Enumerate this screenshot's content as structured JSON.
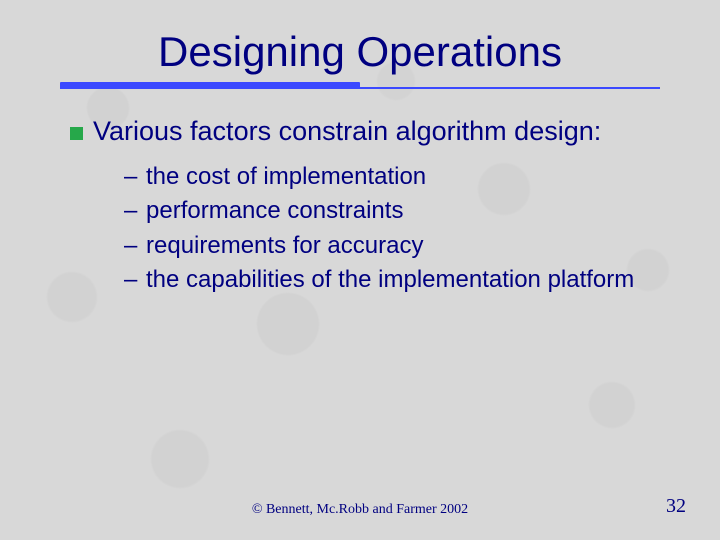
{
  "slide": {
    "title": "Designing Operations",
    "main_bullet": "Various factors constrain algorithm design:",
    "sub_items": [
      "the cost of implementation",
      "performance constraints",
      "requirements for accuracy",
      "the capabilities of the implementation platform"
    ],
    "footer_copyright": "©  Bennett, Mc.Robb and Farmer 2002",
    "page_number": "32"
  },
  "style": {
    "title_color": "#000080",
    "text_color": "#000080",
    "bullet_color": "#26a84a",
    "rule_color": "#3b49ff",
    "background_color": "#d8d8d8",
    "title_fontsize": 42,
    "body_fontsize": 27,
    "sub_fontsize": 24,
    "footer_fontsize": 14,
    "pagenum_fontsize": 20
  }
}
